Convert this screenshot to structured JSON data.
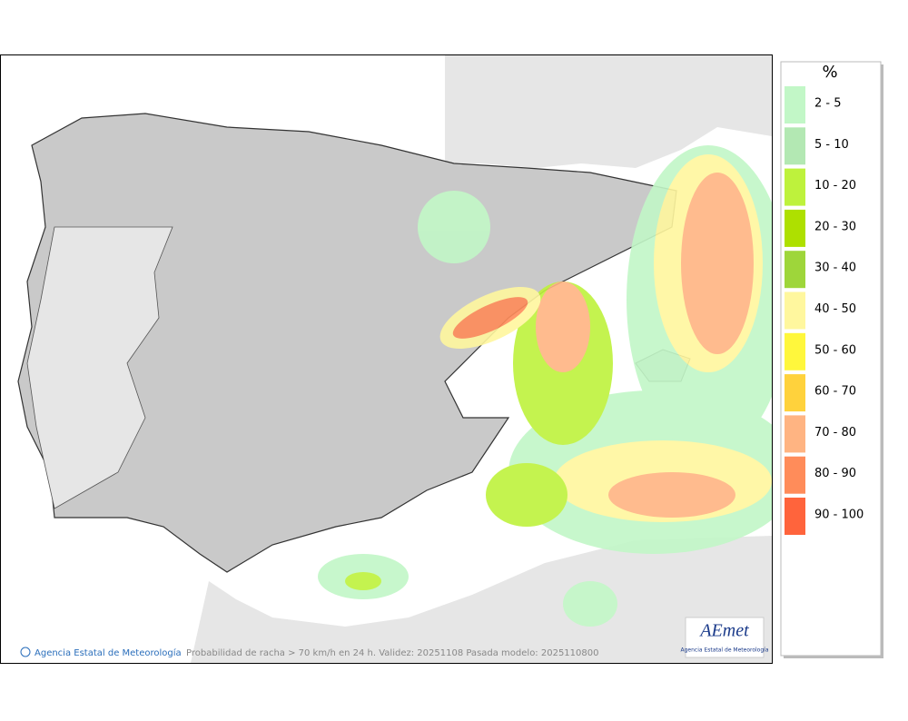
{
  "map": {
    "footer": {
      "credit": "Agencia Estatal de Meteorología",
      "caption": "Probabilidad de racha > 70 km/h en 24 h. Validez: 20251108 Pasada modelo: 2025110800"
    },
    "logo": {
      "name": "AEmet",
      "subtitle": "Agencia Estatal de Meteorología"
    }
  },
  "legend": {
    "title": "%",
    "items": [
      {
        "label": "2 - 5",
        "color": "#c2f7c7"
      },
      {
        "label": "5 - 10",
        "color": "#b3e8b3"
      },
      {
        "label": "10 - 20",
        "color": "#bef23c"
      },
      {
        "label": "20 - 30",
        "color": "#aee000"
      },
      {
        "label": "30 - 40",
        "color": "#9ed63a"
      },
      {
        "label": "40 - 50",
        "color": "#fff79e"
      },
      {
        "label": "50 - 60",
        "color": "#fff73c"
      },
      {
        "label": "60 - 70",
        "color": "#ffd23c"
      },
      {
        "label": "70 - 80",
        "color": "#ffb482"
      },
      {
        "label": "80 - 90",
        "color": "#ff8c5a"
      },
      {
        "label": "90 - 100",
        "color": "#ff643c"
      }
    ]
  }
}
